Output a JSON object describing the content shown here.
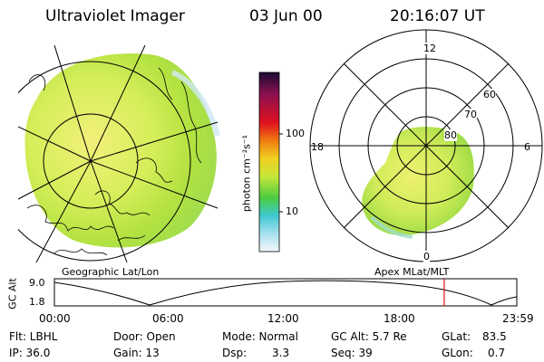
{
  "header": {
    "title": "Ultraviolet Imager",
    "date": "03 Jun 00",
    "time": "20:16:07 UT"
  },
  "colorbar": {
    "label": "photon cm⁻²s⁻¹",
    "tick_100": "100",
    "tick_10": "10"
  },
  "geo_map": {
    "caption": "Geographic Lat/Lon"
  },
  "polar_map": {
    "caption": "Apex MLat/MLT",
    "mlt_12": "12",
    "mlt_18": "18",
    "mlt_6": "6",
    "mlt_0": "0",
    "lat_60": "60",
    "lat_70": "70",
    "lat_80": "80"
  },
  "altitude_plot": {
    "ylabel": "GC Alt",
    "ymax": "9.0",
    "ymin": "1.8",
    "x_ticks": [
      "00:00",
      "06:00",
      "12:00",
      "18:00",
      "23:59"
    ],
    "current_time_fraction": 0.843
  },
  "status": {
    "flt": "Flt: LBHL",
    "door": "Door: Open",
    "mode": "Mode: Normal",
    "gcalt": "GC Alt: 5.7 Re",
    "glat_label": "GLat:",
    "glat_value": "83.5",
    "ip": "IP: 36.0",
    "gain": "Gain: 13",
    "dsp_label": "Dsp:",
    "dsp_value": "3.3",
    "seq": "Seq: 39",
    "glon_label": "GLon:",
    "glon_value": "0.7"
  },
  "colors": {
    "aurora_green": "#a8e03c",
    "aurora_yellow": "#f0f06a",
    "cursor_red": "#e01010"
  }
}
